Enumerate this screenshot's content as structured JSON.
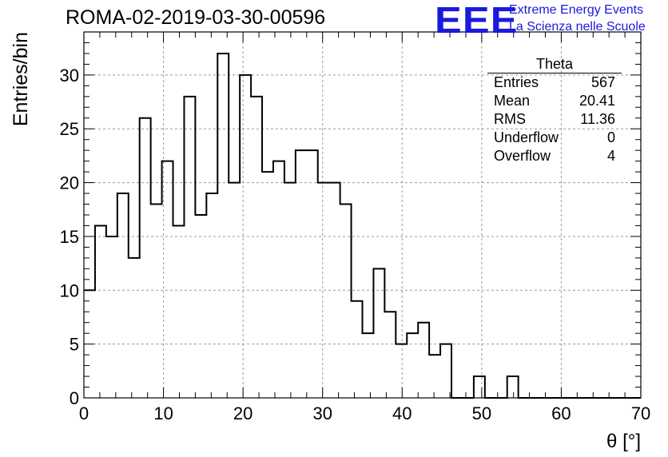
{
  "header": {
    "title": "ROMA-02-2019-03-30-00596",
    "logo_mark": "EEE",
    "logo_line1": "Extreme Energy Events",
    "logo_line2": "La Scienza nelle Scuole",
    "logo_color": "#1a1adc"
  },
  "stats": {
    "name": "Theta",
    "rows": [
      {
        "label": "Entries",
        "value": "567"
      },
      {
        "label": "Mean",
        "value": "20.41"
      },
      {
        "label": "RMS",
        "value": "11.36"
      },
      {
        "label": "Underflow",
        "value": "0"
      },
      {
        "label": "Overflow",
        "value": "4"
      }
    ]
  },
  "chart_data": {
    "type": "histogram",
    "title": "ROMA-02-2019-03-30-00596",
    "xlabel": "θ [°]",
    "ylabel": "Entries/bin",
    "xlim": [
      0,
      70
    ],
    "ylim": [
      0,
      34
    ],
    "xticks": [
      0,
      10,
      20,
      30,
      40,
      50,
      60,
      70
    ],
    "yticks": [
      0,
      5,
      10,
      15,
      20,
      25,
      30
    ],
    "grid": true,
    "bin_edges": [
      0,
      1.4,
      2.8,
      4.2,
      5.6,
      7,
      8.4,
      9.8,
      11.2,
      12.6,
      14,
      15.4,
      16.8,
      18.2,
      19.6,
      21,
      22.4,
      23.8,
      25.2,
      26.6,
      28,
      29.4,
      30.8,
      32.2,
      33.6,
      35,
      36.4,
      37.8,
      39.2,
      40.6,
      42,
      43.4,
      44.8,
      46.2,
      47.6,
      49,
      50.4,
      51.8,
      53.2,
      54.6,
      56,
      57.4,
      58.8,
      60.2,
      61.6,
      63,
      64.4,
      65.8,
      67.2,
      68.6,
      70
    ],
    "counts": [
      10,
      16,
      15,
      19,
      13,
      26,
      18,
      22,
      16,
      28,
      17,
      19,
      32,
      20,
      30,
      28,
      21,
      22,
      20,
      23,
      23,
      20,
      20,
      18,
      9,
      6,
      12,
      8,
      5,
      6,
      7,
      4,
      5,
      0,
      0,
      2,
      0,
      0,
      2,
      0,
      0,
      0,
      0,
      0,
      0,
      0,
      0,
      0,
      0,
      0
    ],
    "line_color": "#000000"
  }
}
